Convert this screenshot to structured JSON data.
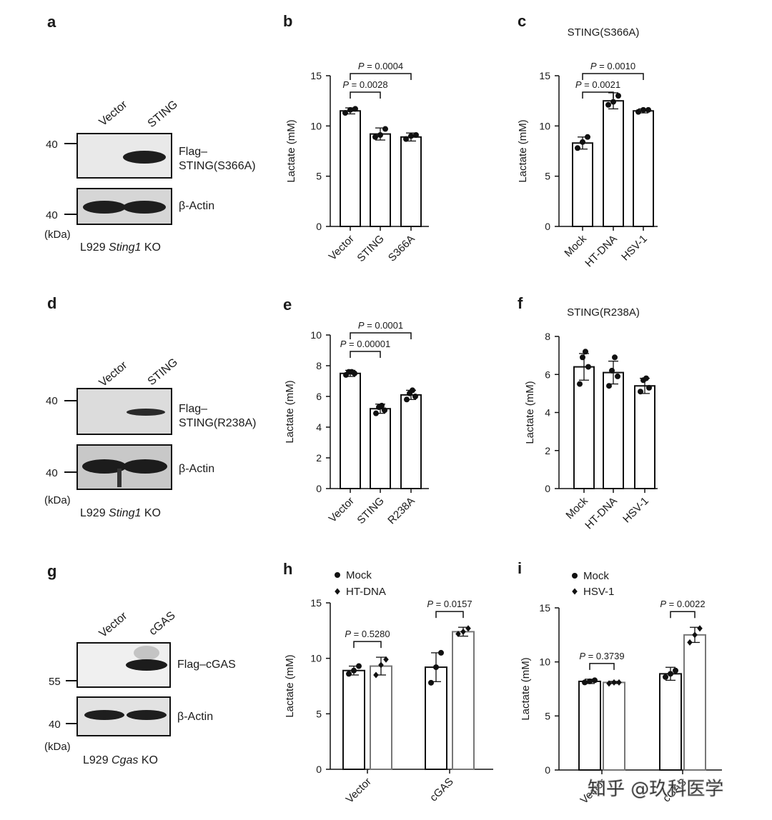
{
  "panels": {
    "a": {
      "letter": "a",
      "lanes": [
        "Vector",
        "STING"
      ],
      "bands": [
        "Flag–",
        "STING(S366A)",
        "β-Actin"
      ],
      "markers": [
        "40",
        "40"
      ],
      "unit": "(kDa)",
      "cell_line": {
        "pre": "L929 ",
        "gene": "Sting1",
        "post": " KO"
      }
    },
    "d": {
      "letter": "d",
      "lanes": [
        "Vector",
        "STING"
      ],
      "bands": [
        "Flag–",
        "STING(R238A)",
        "β-Actin"
      ],
      "markers": [
        "40",
        "40"
      ],
      "unit": "(kDa)",
      "cell_line": {
        "pre": "L929 ",
        "gene": "Sting1",
        "post": " KO"
      }
    },
    "g": {
      "letter": "g",
      "lanes": [
        "Vector",
        "cGAS"
      ],
      "bands": [
        "Flag–cGAS",
        "β-Actin"
      ],
      "markers": [
        "55",
        "40"
      ],
      "unit": "(kDa)",
      "cell_line": {
        "pre": "L929 ",
        "gene": "Cgas",
        "post": " KO"
      }
    }
  },
  "watermark": "知乎 @玖科医学",
  "chart_data": [
    {
      "id": "b",
      "letter": "b",
      "type": "bar",
      "title": "",
      "ylabel": "Lactate (mM)",
      "ylim": [
        0,
        15
      ],
      "yticks": [
        0,
        5,
        10,
        15
      ],
      "categories": [
        "Vector",
        "STING",
        "S366A"
      ],
      "values": [
        11.5,
        9.2,
        8.9
      ],
      "errors": [
        0.3,
        0.6,
        0.4
      ],
      "points": [
        [
          11.3,
          11.6,
          11.7
        ],
        [
          8.9,
          9.1,
          9.7
        ],
        [
          8.7,
          9.0,
          9.1
        ]
      ],
      "comparisons": [
        {
          "from": 0,
          "to": 1,
          "label": "P = 0.0028"
        },
        {
          "from": 0,
          "to": 2,
          "label": "P = 0.0004"
        }
      ]
    },
    {
      "id": "c",
      "letter": "c",
      "type": "bar",
      "title": "STING(S366A)",
      "ylabel": "Lactate (mM)",
      "ylim": [
        0,
        15
      ],
      "yticks": [
        0,
        5,
        10,
        15
      ],
      "categories": [
        "Mock",
        "HT-DNA",
        "HSV-1"
      ],
      "values": [
        8.3,
        12.5,
        11.5
      ],
      "errors": [
        0.6,
        0.8,
        0.2
      ],
      "points": [
        [
          7.8,
          8.4,
          8.9
        ],
        [
          12.1,
          12.4,
          13.0
        ],
        [
          11.4,
          11.6,
          11.6
        ]
      ],
      "comparisons": [
        {
          "from": 0,
          "to": 1,
          "label": "P = 0.0021"
        },
        {
          "from": 0,
          "to": 2,
          "label": "P = 0.0010"
        }
      ]
    },
    {
      "id": "e",
      "letter": "e",
      "type": "bar",
      "title": "",
      "ylabel": "Lactate (mM)",
      "ylim": [
        0,
        10
      ],
      "yticks": [
        0,
        2,
        4,
        6,
        8,
        10
      ],
      "categories": [
        "Vector",
        "STING",
        "R238A"
      ],
      "values": [
        7.5,
        5.2,
        6.1
      ],
      "errors": [
        0.2,
        0.3,
        0.3
      ],
      "points": [
        [
          7.4,
          7.5,
          7.6,
          7.6
        ],
        [
          4.9,
          5.1,
          5.3,
          5.4
        ],
        [
          5.8,
          6.0,
          6.2,
          6.4
        ]
      ],
      "comparisons": [
        {
          "from": 0,
          "to": 1,
          "label": "P = 0.00001"
        },
        {
          "from": 0,
          "to": 2,
          "label": "P = 0.0001"
        }
      ]
    },
    {
      "id": "f",
      "letter": "f",
      "type": "bar",
      "title": "STING(R238A)",
      "ylabel": "Lactate (mM)",
      "ylim": [
        0,
        8
      ],
      "yticks": [
        0,
        2,
        4,
        6,
        8
      ],
      "categories": [
        "Mock",
        "HT-DNA",
        "HSV-1"
      ],
      "values": [
        6.4,
        6.1,
        5.4
      ],
      "errors": [
        0.7,
        0.6,
        0.4
      ],
      "points": [
        [
          5.5,
          6.4,
          6.9,
          7.2
        ],
        [
          5.4,
          5.9,
          6.2,
          6.9
        ],
        [
          5.1,
          5.3,
          5.7,
          5.8
        ]
      ],
      "comparisons": []
    },
    {
      "id": "h",
      "letter": "h",
      "type": "bar",
      "title": "",
      "ylabel": "Lactate (mM)",
      "ylim": [
        0,
        15
      ],
      "yticks": [
        0,
        5,
        10,
        15
      ],
      "categories": [
        "Vector",
        "cGAS"
      ],
      "series": [
        {
          "name": "Mock",
          "marker": "circle",
          "values": [
            8.9,
            9.2
          ],
          "errors": [
            0.4,
            1.3
          ],
          "points": [
            [
              8.6,
              8.9,
              9.3
            ],
            [
              7.8,
              9.2,
              10.5
            ]
          ]
        },
        {
          "name": "HT-DNA",
          "marker": "diamond",
          "values": [
            9.3,
            12.4
          ],
          "errors": [
            0.8,
            0.4
          ],
          "points": [
            [
              8.5,
              9.4,
              9.9
            ],
            [
              12.2,
              12.4,
              12.7
            ]
          ]
        }
      ],
      "comparisons": [
        {
          "group": 0,
          "label": "P = 0.5280"
        },
        {
          "group": 1,
          "label": "P = 0.0157"
        }
      ],
      "legend": "top-left"
    },
    {
      "id": "i",
      "letter": "i",
      "type": "bar",
      "title": "",
      "ylabel": "Lactate (mM)",
      "ylim": [
        0,
        15
      ],
      "yticks": [
        0,
        5,
        10,
        15
      ],
      "categories": [
        "Vector",
        "cGAS"
      ],
      "series": [
        {
          "name": "Mock",
          "marker": "circle",
          "values": [
            8.2,
            8.9
          ],
          "errors": [
            0.2,
            0.6
          ],
          "points": [
            [
              8.1,
              8.2,
              8.3
            ],
            [
              8.6,
              8.9,
              9.2
            ]
          ]
        },
        {
          "name": "HSV-1",
          "marker": "diamond",
          "values": [
            8.1,
            12.5
          ],
          "errors": [
            0.1,
            0.7
          ],
          "points": [
            [
              8.0,
              8.1,
              8.1
            ],
            [
              11.8,
              12.5,
              13.1
            ]
          ]
        }
      ],
      "comparisons": [
        {
          "group": 0,
          "label": "P = 0.3739"
        },
        {
          "group": 1,
          "label": "P = 0.0022"
        }
      ],
      "legend": "top-left"
    }
  ]
}
